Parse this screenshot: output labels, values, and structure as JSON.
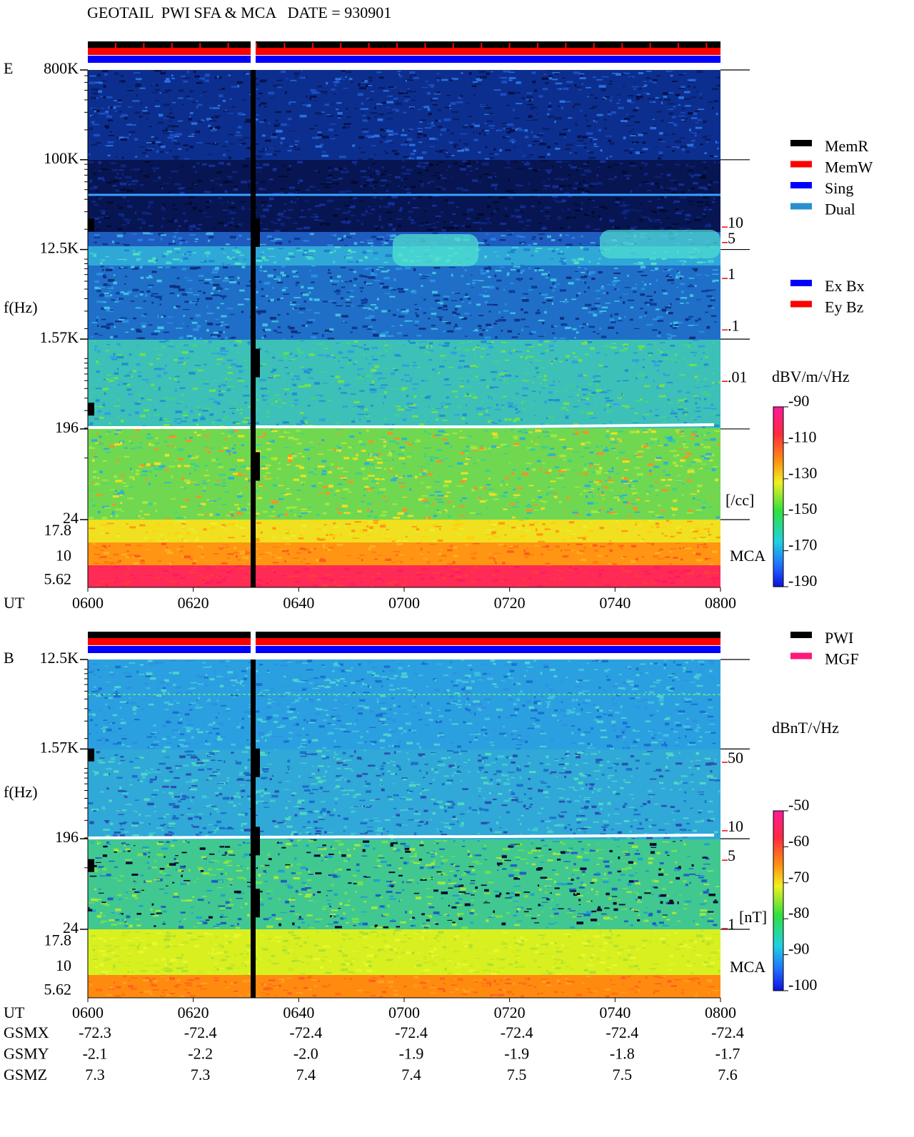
{
  "title": "GEOTAIL  PWI SFA & MCA   DATE = 930901",
  "chart_data": [
    {
      "type": "spectrogram",
      "panel_label": "E",
      "ylabel": "f(Hz)",
      "xlabel": "UT",
      "log_y": true,
      "ylim": [
        24,
        800000
      ],
      "yticks": [
        {
          "value": 800000,
          "label": "800K"
        },
        {
          "value": 100000,
          "label": "100K"
        },
        {
          "value": 12500,
          "label": "12.5K"
        },
        {
          "value": 1570,
          "label": "1.57K"
        },
        196,
        24
      ],
      "mca_label": "MCA",
      "mca_channels": [
        17.8,
        10,
        5.62
      ],
      "xticks": [
        "0600",
        "0620",
        "0640",
        "0700",
        "0720",
        "0740",
        "0800"
      ],
      "y2lim": [
        1.8e-05,
        10000
      ],
      "y2ticks": [
        10,
        5,
        1,
        {
          "value": 0.1,
          "label": ".1"
        },
        {
          "value": 0.01,
          "label": ".01"
        }
      ],
      "y2_unit": "[/cc]",
      "y2_color": "#ff0000",
      "colorbar": {
        "label": "dBV/m/√Hz",
        "lim": [
          -190,
          -90
        ],
        "ticks": [
          -90,
          -110,
          -130,
          -150,
          -170,
          -190
        ]
      },
      "legends": [
        [
          {
            "name": "MemR",
            "color": "#000000"
          },
          {
            "name": "MemW",
            "color": "#ff0000"
          },
          {
            "name": "Sing",
            "color": "#0000ff"
          },
          {
            "name": "Dual",
            "color": "#2a8fd0"
          }
        ],
        [
          {
            "name": "Ex Bx",
            "color": "#0000ff"
          },
          {
            "name": "Ey Bz",
            "color": "#ff0000"
          }
        ]
      ]
    },
    {
      "type": "spectrogram",
      "panel_label": "B",
      "ylabel": "f(Hz)",
      "xlabel": "UT",
      "log_y": true,
      "ylim": [
        24,
        12500
      ],
      "yticks": [
        {
          "value": 12500,
          "label": "12.5K"
        },
        {
          "value": 1570,
          "label": "1.57K"
        },
        196,
        24
      ],
      "mca_label": "MCA",
      "mca_channels": [
        17.8,
        10,
        5.62
      ],
      "xticks": [
        "0600",
        "0620",
        "0640",
        "0700",
        "0720",
        "0740",
        "0800"
      ],
      "y2lim": [
        0.92,
        525
      ],
      "y2ticks": [
        50,
        10,
        5,
        1
      ],
      "y2_unit": "[nT]",
      "y2_color": "#ff0000",
      "colorbar": {
        "label": "dBnT/√Hz",
        "lim": [
          -100,
          -50
        ],
        "ticks": [
          -50,
          -60,
          -70,
          -80,
          -90,
          -100
        ]
      },
      "legends": [
        [
          {
            "name": "PWI",
            "color": "#000000"
          },
          {
            "name": "MGF",
            "color": "#ff1a7a"
          }
        ]
      ]
    }
  ],
  "orbit": {
    "rows": [
      {
        "name": "GSMX",
        "values": [
          "-72.3",
          "-72.4",
          "-72.4",
          "-72.4",
          "-72.4",
          "-72.4",
          "-72.4"
        ]
      },
      {
        "name": "GSMY",
        "values": [
          "-2.1",
          "-2.2",
          "-2.0",
          "-1.9",
          "-1.9",
          "-1.8",
          "-1.7"
        ]
      },
      {
        "name": "GSMZ",
        "values": [
          "7.3",
          "7.3",
          "7.4",
          "7.4",
          "7.5",
          "7.5",
          "7.6"
        ]
      }
    ]
  }
}
